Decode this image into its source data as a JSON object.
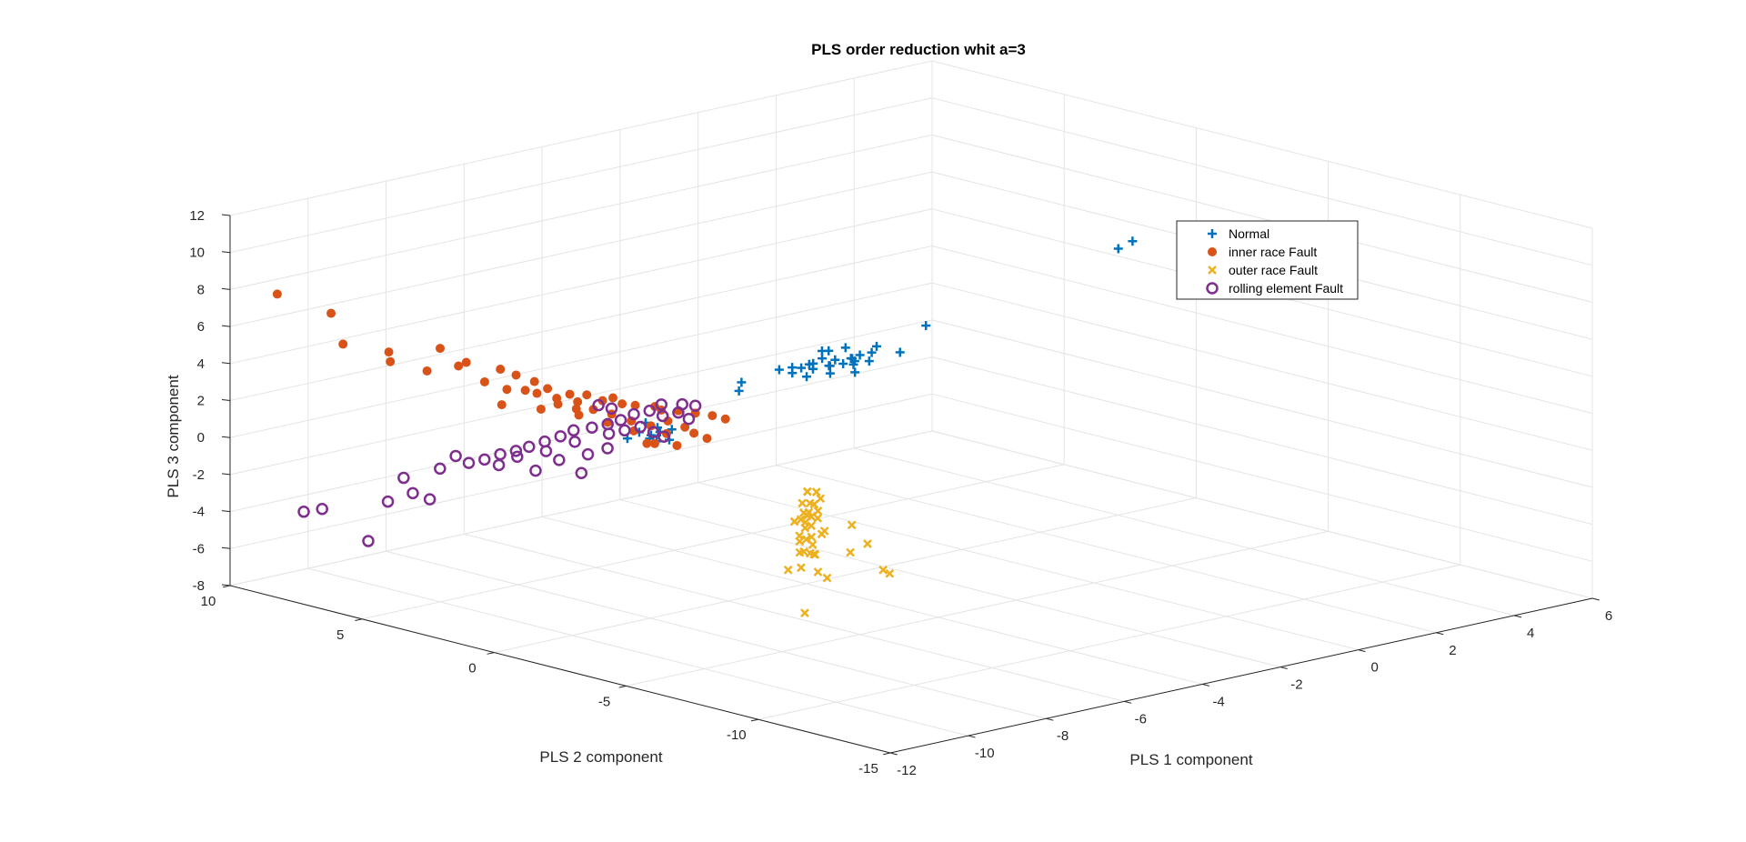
{
  "chart_data": {
    "type": "scatter3d",
    "title": "PLS order reduction whit a=3",
    "xlabel": "PLS 1 component",
    "ylabel": "PLS 2 component",
    "zlabel": "PLS 3 component",
    "xlim": [
      -12,
      6
    ],
    "ylim": [
      -15,
      10
    ],
    "zlim": [
      -8,
      12
    ],
    "xticks": [
      "-12",
      "-10",
      "-8",
      "-6",
      "-4",
      "-2",
      "0",
      "2",
      "4",
      "6"
    ],
    "yticks": [
      "-15",
      "-10",
      "-5",
      "0",
      "5",
      "10"
    ],
    "zticks": [
      "-8",
      "-6",
      "-4",
      "-2",
      "0",
      "2",
      "4",
      "6",
      "8",
      "10",
      "12"
    ],
    "grid": true,
    "legend_position": "top-right",
    "series": [
      {
        "name": "Normal",
        "marker": "plus",
        "color": "#0072BD",
        "points": [
          [
            -4.6,
            -1.0,
            4.5
          ],
          [
            -4.2,
            -1.2,
            4.3
          ],
          [
            -3.8,
            -1.4,
            4.6
          ],
          [
            -3.5,
            -1.1,
            4.2
          ],
          [
            -4.9,
            -0.8,
            4.4
          ],
          [
            -4.0,
            -0.6,
            4.8
          ],
          [
            -3.6,
            -0.9,
            4.9
          ],
          [
            -4.4,
            -1.5,
            4.1
          ],
          [
            -3.9,
            -1.7,
            4.0
          ],
          [
            -4.7,
            -1.3,
            4.7
          ],
          [
            -3.3,
            -1.0,
            4.4
          ],
          [
            -5.1,
            -1.1,
            4.3
          ],
          [
            -4.3,
            -0.7,
            4.0
          ],
          [
            -3.7,
            -1.3,
            4.5
          ],
          [
            -4.5,
            -1.6,
            4.6
          ],
          [
            -4.1,
            -1.0,
            5.0
          ],
          [
            -3.4,
            -1.5,
            4.3
          ],
          [
            -4.8,
            -1.2,
            4.0
          ],
          [
            -4.2,
            -0.9,
            4.6
          ],
          [
            -3.6,
            -1.2,
            4.1
          ],
          [
            -5.3,
            -0.9,
            4.5
          ],
          [
            -3.2,
            -1.3,
            4.6
          ],
          [
            -4.0,
            -1.4,
            4.4
          ],
          [
            -4.6,
            -0.7,
            4.2
          ],
          [
            -3.8,
            -0.8,
            4.3
          ],
          [
            -2.6,
            -0.6,
            4.4
          ],
          [
            -2.0,
            -0.6,
            3.8
          ],
          [
            -1.2,
            -0.4,
            4.8
          ],
          [
            -6.2,
            -0.8,
            4.2
          ],
          [
            -6.4,
            -1.0,
            3.9
          ],
          [
            3.8,
            -0.3,
            6.6
          ],
          [
            4.3,
            -0.1,
            6.7
          ],
          [
            -7.0,
            1.2,
            1.4
          ],
          [
            -7.3,
            1.0,
            1.2
          ],
          [
            -6.8,
            1.4,
            1.0
          ],
          [
            -7.1,
            1.5,
            1.6
          ],
          [
            -6.9,
            0.9,
            0.8
          ],
          [
            -7.2,
            1.2,
            0.9
          ],
          [
            -7.4,
            1.3,
            1.3
          ],
          [
            -6.7,
            1.1,
            1.2
          ],
          [
            -7.5,
            1.6,
            0.9
          ],
          [
            -6.95,
            1.3,
            0.6
          ]
        ]
      },
      {
        "name": "inner race Fault",
        "marker": "dot",
        "color": "#D95319",
        "points": [
          [
            -10.2,
            5.2,
            4.5
          ],
          [
            -10.0,
            5.0,
            5.7
          ],
          [
            -10.6,
            6.0,
            4.9
          ],
          [
            -10.3,
            6.5,
            5.1
          ],
          [
            -11.0,
            7.2,
            5.6
          ],
          [
            -10.9,
            7.8,
            7.0
          ],
          [
            -11.4,
            9.1,
            7.8
          ],
          [
            -9.6,
            4.6,
            4.9
          ],
          [
            -9.2,
            3.9,
            4.6
          ],
          [
            -9.0,
            3.6,
            4.3
          ],
          [
            -9.4,
            4.2,
            3.9
          ],
          [
            -8.8,
            3.2,
            4.0
          ],
          [
            -8.9,
            3.4,
            3.5
          ],
          [
            -9.1,
            3.8,
            3.5
          ],
          [
            -8.6,
            3.0,
            3.6
          ],
          [
            -8.3,
            2.6,
            3.3
          ],
          [
            -8.5,
            2.8,
            3.1
          ],
          [
            -8.0,
            2.4,
            3.2
          ],
          [
            -7.8,
            2.1,
            2.9
          ],
          [
            -7.6,
            2.0,
            3.0
          ],
          [
            -8.1,
            2.6,
            2.8
          ],
          [
            -7.5,
            1.8,
            2.7
          ],
          [
            -7.3,
            1.6,
            2.6
          ],
          [
            -7.0,
            1.3,
            2.5
          ],
          [
            -6.9,
            1.2,
            2.3
          ],
          [
            -6.6,
            1.0,
            2.2
          ],
          [
            -6.3,
            0.8,
            2.0
          ],
          [
            -6.0,
            0.6,
            1.8
          ],
          [
            -5.8,
            0.4,
            1.6
          ],
          [
            -7.7,
            1.9,
            2.2
          ],
          [
            -7.9,
            2.3,
            2.4
          ],
          [
            -8.2,
            2.5,
            2.5
          ],
          [
            -8.4,
            2.9,
            2.7
          ],
          [
            -7.4,
            1.6,
            1.8
          ],
          [
            -7.1,
            1.3,
            1.5
          ],
          [
            -6.8,
            1.1,
            1.7
          ],
          [
            -6.5,
            0.9,
            1.3
          ],
          [
            -9.3,
            3.7,
            2.8
          ],
          [
            -8.7,
            3.1,
            2.5
          ],
          [
            -8.0,
            2.7,
            2.0
          ],
          [
            -7.6,
            2.2,
            1.6
          ],
          [
            -7.2,
            1.8,
            1.1
          ],
          [
            -6.7,
            1.3,
            0.9
          ],
          [
            -6.2,
            1.0,
            0.8
          ],
          [
            -7.0,
            1.6,
            0.4
          ],
          [
            -6.5,
            1.2,
            0.2
          ],
          [
            -6.0,
            0.8,
            0.5
          ],
          [
            -6.8,
            1.6,
            0.3
          ],
          [
            -8.6,
            3.4,
            3.2
          ],
          [
            -9.8,
            4.6,
            4.8
          ]
        ]
      },
      {
        "name": "outer race Fault",
        "marker": "x",
        "color": "#EDB120",
        "points": [
          [
            -6.0,
            -3.0,
            -1.0
          ],
          [
            -6.2,
            -3.1,
            -1.5
          ],
          [
            -5.8,
            -2.8,
            -1.8
          ],
          [
            -6.1,
            -3.3,
            -2.2
          ],
          [
            -6.4,
            -3.5,
            -2.6
          ],
          [
            -5.9,
            -3.0,
            -2.9
          ],
          [
            -6.3,
            -3.4,
            -3.3
          ],
          [
            -6.0,
            -3.2,
            -3.8
          ],
          [
            -5.7,
            -2.9,
            -1.2
          ],
          [
            -6.5,
            -3.6,
            -1.7
          ],
          [
            -6.2,
            -3.4,
            -4.1
          ],
          [
            -5.8,
            -3.0,
            -4.5
          ],
          [
            -6.1,
            -3.2,
            -2.0
          ],
          [
            -6.4,
            -3.1,
            -2.4
          ],
          [
            -5.9,
            -3.5,
            -3.0
          ],
          [
            -6.0,
            -2.7,
            -3.5
          ],
          [
            -6.3,
            -3.7,
            -1.3
          ],
          [
            -6.6,
            -3.8,
            -2.1
          ],
          [
            -5.6,
            -2.8,
            -2.7
          ],
          [
            -6.2,
            -3.0,
            -3.6
          ],
          [
            -6.4,
            -3.3,
            -4.0
          ],
          [
            -6.0,
            -3.4,
            -1.9
          ],
          [
            -5.9,
            -3.1,
            -4.4
          ],
          [
            -6.1,
            -2.9,
            -2.5
          ],
          [
            -6.3,
            -3.6,
            -3.1
          ],
          [
            -6.5,
            -3.5,
            -4.7
          ],
          [
            -5.7,
            -3.1,
            -3.4
          ],
          [
            -6.2,
            -3.3,
            -0.8
          ],
          [
            -5.8,
            -3.2,
            -1.4
          ],
          [
            -6.0,
            -3.0,
            -2.3
          ],
          [
            -5.2,
            -3.5,
            -3.0
          ],
          [
            -5.0,
            -3.8,
            -4.0
          ],
          [
            -4.9,
            -3.0,
            -4.8
          ],
          [
            -6.7,
            -3.9,
            -3.6
          ],
          [
            -6.9,
            -3.6,
            -4.6
          ],
          [
            -6.0,
            -3.4,
            -5.2
          ],
          [
            -5.9,
            -3.6,
            -5.5
          ],
          [
            -4.6,
            -3.8,
            -5.6
          ],
          [
            -4.5,
            -3.9,
            -5.8
          ],
          [
            -6.0,
            -2.9,
            -7.6
          ]
        ]
      },
      {
        "name": "rolling element Fault",
        "marker": "circle",
        "color": "#7E2F8E",
        "points": [
          [
            -7.0,
            1.5,
            2.2
          ],
          [
            -7.2,
            1.8,
            2.0
          ],
          [
            -6.8,
            1.3,
            1.9
          ],
          [
            -7.4,
            2.0,
            1.7
          ],
          [
            -6.6,
            1.0,
            2.1
          ],
          [
            -7.6,
            2.2,
            1.5
          ],
          [
            -6.4,
            0.9,
            1.7
          ],
          [
            -7.8,
            2.5,
            1.3
          ],
          [
            -7.1,
            1.7,
            1.3
          ],
          [
            -6.9,
            1.5,
            1.0
          ],
          [
            -7.3,
            2.0,
            1.1
          ],
          [
            -7.5,
            2.3,
            0.9
          ],
          [
            -6.7,
            1.4,
            0.7
          ],
          [
            -8.0,
            2.9,
            1.1
          ],
          [
            -8.2,
            3.1,
            0.8
          ],
          [
            -7.9,
            3.0,
            0.4
          ],
          [
            -8.4,
            3.4,
            0.5
          ],
          [
            -8.6,
            3.7,
            0.2
          ],
          [
            -8.8,
            3.9,
            0.0
          ],
          [
            -9.0,
            4.2,
            -0.2
          ],
          [
            -8.3,
            3.5,
            -0.1
          ],
          [
            -8.7,
            4.0,
            -0.4
          ],
          [
            -9.2,
            4.5,
            -0.5
          ],
          [
            -9.4,
            4.8,
            -0.7
          ],
          [
            -8.9,
            4.4,
            -0.9
          ],
          [
            -7.7,
            2.8,
            -0.3
          ],
          [
            -7.4,
            2.5,
            0.0
          ],
          [
            -8.1,
            3.3,
            -0.6
          ],
          [
            -9.6,
            5.0,
            -0.3
          ],
          [
            -9.8,
            5.3,
            -1.0
          ],
          [
            -6.5,
            1.0,
            2.5
          ],
          [
            -6.9,
            1.2,
            2.6
          ],
          [
            -6.3,
            0.8,
            2.4
          ],
          [
            -7.7,
            2.4,
            2.5
          ],
          [
            -7.5,
            2.2,
            2.3
          ],
          [
            -8.5,
            3.6,
            -1.1
          ],
          [
            -7.8,
            2.9,
            -1.3
          ],
          [
            -10.8,
            5.2,
            -1.0
          ],
          [
            -10.7,
            5.0,
            -1.8
          ],
          [
            -11.0,
            5.5,
            -2.3
          ],
          [
            -10.4,
            4.8,
            -2.2
          ],
          [
            -11.4,
            7.4,
            -3.2
          ],
          [
            -11.6,
            7.8,
            -3.4
          ],
          [
            -11.3,
            5.8,
            -4.4
          ]
        ]
      }
    ]
  }
}
